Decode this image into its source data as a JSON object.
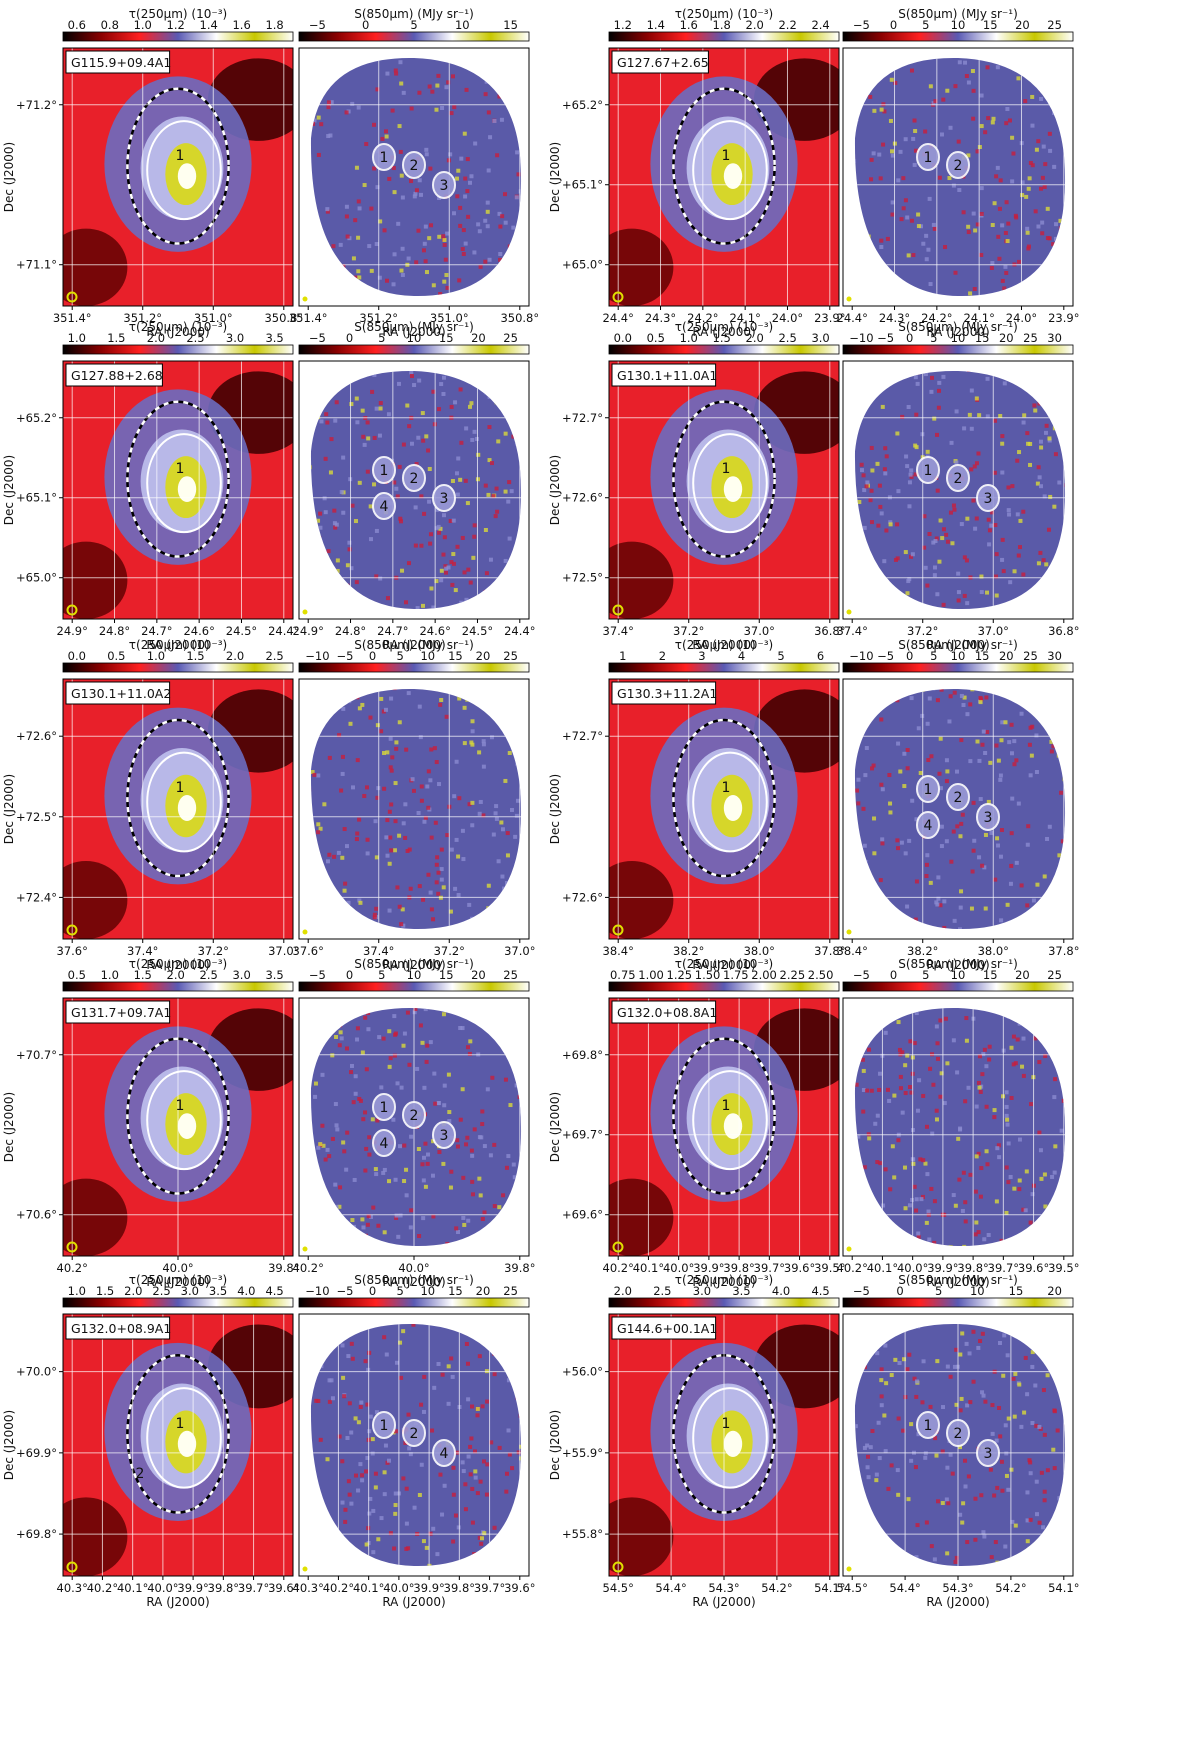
{
  "figure": {
    "colorbar_cmap_colors": [
      "#000000",
      "#8b0000",
      "#ff2020",
      "#5a5ab4",
      "#ffffff",
      "#c8c800",
      "#ffffff"
    ],
    "tau_colorbar_label": "τ(250μm) (10⁻³)",
    "s_colorbar_label": "S(850μm) (MJy sr⁻¹)",
    "dec_axis_label": "Dec (J2000)",
    "ra_axis_label": "RA (J2000)"
  },
  "chart_data": [
    {
      "type": "heatmap",
      "field": "G115.9+09.4A1",
      "tau_colorbar_ticks": [
        "0.6",
        "0.8",
        "1.0",
        "1.2",
        "1.4",
        "1.6",
        "1.8"
      ],
      "s_colorbar_ticks": [
        "−5",
        "0",
        "5",
        "10",
        "15"
      ],
      "dec_ticks": [
        "+71.2°",
        "+71.1°"
      ],
      "ra_ticks_tau": [
        "351.4°",
        "351.2°",
        "351.0°",
        "350.8°"
      ],
      "ra_ticks_s": [
        "351.4°",
        "351.2°",
        "351.0°",
        "350.8°"
      ],
      "tau_labels": [
        "1"
      ],
      "s_labels": [
        "1",
        "2",
        "3"
      ]
    },
    {
      "type": "heatmap",
      "field": "G127.67+2.65",
      "tau_colorbar_ticks": [
        "1.2",
        "1.4",
        "1.6",
        "1.8",
        "2.0",
        "2.2",
        "2.4"
      ],
      "s_colorbar_ticks": [
        "−5",
        "0",
        "5",
        "10",
        "15",
        "20",
        "25"
      ],
      "dec_ticks": [
        "+65.2°",
        "+65.1°",
        "+65.0°"
      ],
      "ra_ticks_tau": [
        "24.4°",
        "24.3°",
        "24.2°",
        "24.1°",
        "24.0°",
        "23.9°"
      ],
      "ra_ticks_s": [
        "24.4°",
        "24.3°",
        "24.2°",
        "24.1°",
        "24.0°",
        "23.9°"
      ],
      "tau_labels": [
        "1"
      ],
      "s_labels": [
        "1",
        "2"
      ]
    },
    {
      "type": "heatmap",
      "field": "G127.88+2.68",
      "tau_colorbar_ticks": [
        "1.0",
        "1.5",
        "2.0",
        "2.5",
        "3.0",
        "3.5"
      ],
      "s_colorbar_ticks": [
        "−5",
        "0",
        "5",
        "10",
        "15",
        "20",
        "25"
      ],
      "dec_ticks": [
        "+65.2°",
        "+65.1°",
        "+65.0°"
      ],
      "ra_ticks_tau": [
        "24.9°",
        "24.8°",
        "24.7°",
        "24.6°",
        "24.5°",
        "24.4°"
      ],
      "ra_ticks_s": [
        "24.9°",
        "24.8°",
        "24.7°",
        "24.6°",
        "24.5°",
        "24.4°"
      ],
      "tau_labels": [
        "1"
      ],
      "s_labels": [
        "1",
        "2",
        "3",
        "4"
      ]
    },
    {
      "type": "heatmap",
      "field": "G130.1+11.0A1",
      "tau_colorbar_ticks": [
        "0.0",
        "0.5",
        "1.0",
        "1.5",
        "2.0",
        "2.5",
        "3.0"
      ],
      "s_colorbar_ticks": [
        "−10",
        "−5",
        "0",
        "5",
        "10",
        "15",
        "20",
        "25",
        "30"
      ],
      "dec_ticks": [
        "+72.7°",
        "+72.6°",
        "+72.5°"
      ],
      "ra_ticks_tau": [
        "37.4°",
        "37.2°",
        "37.0°",
        "36.8°"
      ],
      "ra_ticks_s": [
        "37.4°",
        "37.2°",
        "37.0°",
        "36.8°"
      ],
      "tau_labels": [
        "1"
      ],
      "s_labels": [
        "1",
        "2",
        "3"
      ]
    },
    {
      "type": "heatmap",
      "field": "G130.1+11.0A2",
      "tau_colorbar_ticks": [
        "0.0",
        "0.5",
        "1.0",
        "1.5",
        "2.0",
        "2.5"
      ],
      "s_colorbar_ticks": [
        "−10",
        "−5",
        "0",
        "5",
        "10",
        "15",
        "20",
        "25"
      ],
      "dec_ticks": [
        "+72.6°",
        "+72.5°",
        "+72.4°"
      ],
      "ra_ticks_tau": [
        "37.6°",
        "37.4°",
        "37.2°",
        "37.0°"
      ],
      "ra_ticks_s": [
        "37.6°",
        "37.4°",
        "37.2°",
        "37.0°"
      ],
      "tau_labels": [
        "1"
      ],
      "s_labels": []
    },
    {
      "type": "heatmap",
      "field": "G130.3+11.2A1",
      "tau_colorbar_ticks": [
        "1",
        "2",
        "3",
        "4",
        "5",
        "6"
      ],
      "s_colorbar_ticks": [
        "−10",
        "−5",
        "0",
        "5",
        "10",
        "15",
        "20",
        "25",
        "30"
      ],
      "dec_ticks": [
        "+72.7°",
        "+72.6°"
      ],
      "ra_ticks_tau": [
        "38.4°",
        "38.2°",
        "38.0°",
        "37.8°"
      ],
      "ra_ticks_s": [
        "38.4°",
        "38.2°",
        "38.0°",
        "37.8°"
      ],
      "tau_labels": [
        "1"
      ],
      "s_labels": [
        "1",
        "2",
        "3",
        "4"
      ]
    },
    {
      "type": "heatmap",
      "field": "G131.7+09.7A1",
      "tau_colorbar_ticks": [
        "0.5",
        "1.0",
        "1.5",
        "2.0",
        "2.5",
        "3.0",
        "3.5"
      ],
      "s_colorbar_ticks": [
        "−5",
        "0",
        "5",
        "10",
        "15",
        "20",
        "25"
      ],
      "dec_ticks": [
        "+70.7°",
        "+70.6°"
      ],
      "ra_ticks_tau": [
        "40.2°",
        "40.0°",
        "39.8°"
      ],
      "ra_ticks_s": [
        "40.2°",
        "40.0°",
        "39.8°"
      ],
      "tau_labels": [
        "1"
      ],
      "s_labels": [
        "1",
        "2",
        "3",
        "4"
      ]
    },
    {
      "type": "heatmap",
      "field": "G132.0+08.8A1",
      "tau_colorbar_ticks": [
        "0.75",
        "1.00",
        "1.25",
        "1.50",
        "1.75",
        "2.00",
        "2.25",
        "2.50"
      ],
      "s_colorbar_ticks": [
        "−5",
        "0",
        "5",
        "10",
        "15",
        "20",
        "25"
      ],
      "dec_ticks": [
        "+69.8°",
        "+69.7°",
        "+69.6°"
      ],
      "ra_ticks_tau": [
        "40.2°",
        "40.1°",
        "40.0°",
        "39.9°",
        "39.8°",
        "39.7°",
        "39.6°",
        "39.5°"
      ],
      "ra_ticks_s": [
        "40.2°",
        "40.1°",
        "40.0°",
        "39.9°",
        "39.8°",
        "39.7°",
        "39.6°",
        "39.5°"
      ],
      "tau_labels": [
        "1"
      ],
      "s_labels": []
    },
    {
      "type": "heatmap",
      "field": "G132.0+08.9A1",
      "tau_colorbar_ticks": [
        "1.0",
        "1.5",
        "2.0",
        "2.5",
        "3.0",
        "3.5",
        "4.0",
        "4.5"
      ],
      "s_colorbar_ticks": [
        "−10",
        "−5",
        "0",
        "5",
        "10",
        "15",
        "20",
        "25"
      ],
      "dec_ticks": [
        "+70.0°",
        "+69.9°",
        "+69.8°"
      ],
      "ra_ticks_tau": [
        "40.3°",
        "40.2°",
        "40.1°",
        "40.0°",
        "39.9°",
        "39.8°",
        "39.7°",
        "39.6°"
      ],
      "ra_ticks_s": [
        "40.3°",
        "40.2°",
        "40.1°",
        "40.0°",
        "39.9°",
        "39.8°",
        "39.7°",
        "39.6°"
      ],
      "tau_labels": [
        "1",
        "2"
      ],
      "s_labels": [
        "1",
        "2",
        "4"
      ]
    },
    {
      "type": "heatmap",
      "field": "G144.6+00.1A1",
      "tau_colorbar_ticks": [
        "2.0",
        "2.5",
        "3.0",
        "3.5",
        "4.0",
        "4.5"
      ],
      "s_colorbar_ticks": [
        "−5",
        "0",
        "5",
        "10",
        "15",
        "20"
      ],
      "dec_ticks": [
        "+56.0°",
        "+55.9°",
        "+55.8°"
      ],
      "ra_ticks_tau": [
        "54.5°",
        "54.4°",
        "54.3°",
        "54.2°",
        "54.1°"
      ],
      "ra_ticks_s": [
        "54.5°",
        "54.4°",
        "54.3°",
        "54.2°",
        "54.1°"
      ],
      "tau_labels": [
        "1"
      ],
      "s_labels": [
        "1",
        "2",
        "3"
      ]
    }
  ]
}
